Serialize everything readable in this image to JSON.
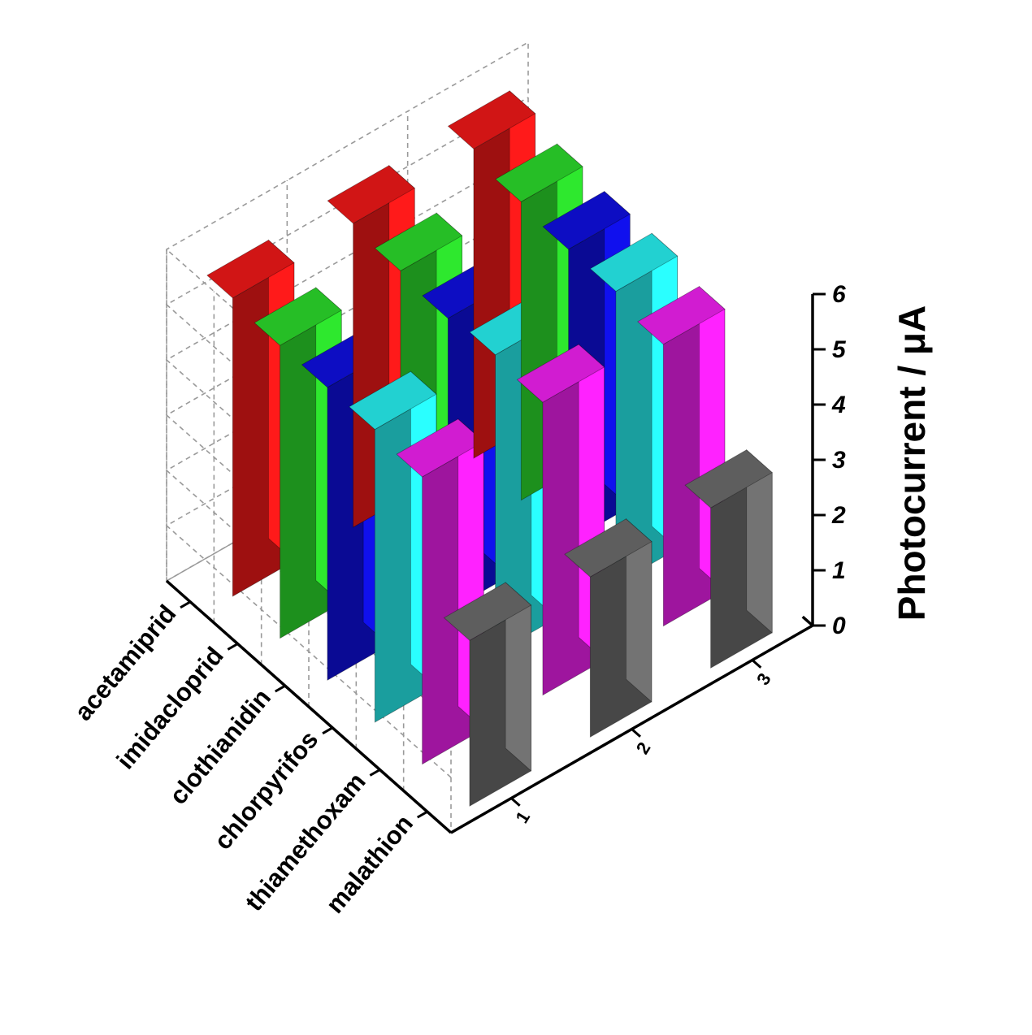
{
  "chart_data": {
    "type": "bar3d",
    "zlabel": "Photocurrent / μA",
    "zlim": [
      0,
      6
    ],
    "zticks": [
      "0",
      "1",
      "2",
      "3",
      "4",
      "5",
      "6"
    ],
    "categories": [
      "acetamiprid",
      "imidacloprid",
      "clothianidin",
      "chlorpyrifos",
      "thiamethoxam",
      "malathion"
    ],
    "x": [
      "1",
      "2",
      "3"
    ],
    "series": [
      {
        "category": "acetamiprid",
        "color": "#ff1a1a",
        "values": [
          5.4,
          5.5,
          5.6
        ]
      },
      {
        "category": "imidacloprid",
        "color": "#2ee82e",
        "values": [
          5.3,
          5.4,
          5.4
        ]
      },
      {
        "category": "clothianidin",
        "color": "#1010ee",
        "values": [
          5.3,
          5.3,
          5.3
        ]
      },
      {
        "category": "chlorpyrifos",
        "color": "#2affff",
        "values": [
          5.3,
          5.4,
          5.3
        ]
      },
      {
        "category": "thiamethoxam",
        "color": "#ff22ff",
        "values": [
          5.2,
          5.3,
          5.1
        ]
      },
      {
        "category": "malathion",
        "color": "#737373",
        "values": [
          3.0,
          2.9,
          2.9
        ]
      }
    ],
    "grid": true
  }
}
